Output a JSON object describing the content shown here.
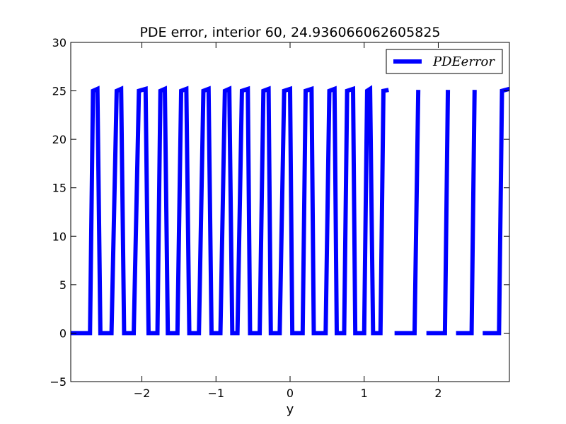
{
  "chart_data": {
    "type": "line",
    "title": "PDE error, interior 60, 24.936066062605825",
    "xlabel": "y",
    "ylabel": "",
    "xlim": [
      -2.96,
      2.96
    ],
    "ylim": [
      -5,
      30
    ],
    "xticks": [
      -2,
      -1,
      0,
      1,
      2
    ],
    "xtick_labels": [
      "−2",
      "−1",
      "0",
      "1",
      "2"
    ],
    "yticks": [
      -5,
      0,
      5,
      10,
      15,
      20,
      25,
      30
    ],
    "ytick_labels": [
      "−5",
      "0",
      "5",
      "10",
      "15",
      "20",
      "25",
      "30"
    ],
    "grid": false,
    "legend": {
      "position": "top-right",
      "entries": [
        "PDEerror"
      ]
    },
    "series": [
      {
        "name": "PDEerror",
        "color": "#0000ff",
        "segments": [
          [
            [
              -2.96,
              0.0
            ],
            [
              -2.7,
              0.0
            ],
            [
              -2.66,
              25.0
            ],
            [
              -2.6,
              25.2
            ],
            [
              -2.56,
              0.0
            ],
            [
              -2.41,
              0.0
            ],
            [
              -2.34,
              25.0
            ],
            [
              -2.28,
              25.2
            ],
            [
              -2.24,
              0.0
            ],
            [
              -2.11,
              0.0
            ],
            [
              -2.04,
              25.0
            ],
            [
              -1.95,
              25.2
            ],
            [
              -1.91,
              0.0
            ],
            [
              -1.79,
              0.0
            ],
            [
              -1.75,
              25.0
            ],
            [
              -1.69,
              25.2
            ],
            [
              -1.65,
              0.0
            ],
            [
              -1.52,
              0.0
            ],
            [
              -1.47,
              25.0
            ],
            [
              -1.4,
              25.2
            ],
            [
              -1.36,
              0.0
            ],
            [
              -1.23,
              0.0
            ],
            [
              -1.17,
              25.0
            ],
            [
              -1.1,
              25.2
            ],
            [
              -1.06,
              0.0
            ],
            [
              -0.94,
              0.0
            ],
            [
              -0.88,
              25.0
            ],
            [
              -0.82,
              25.2
            ],
            [
              -0.78,
              0.0
            ],
            [
              -0.71,
              0.0
            ],
            [
              -0.65,
              25.0
            ],
            [
              -0.57,
              25.2
            ],
            [
              -0.54,
              0.0
            ],
            [
              -0.41,
              0.0
            ],
            [
              -0.36,
              25.0
            ],
            [
              -0.29,
              25.2
            ],
            [
              -0.26,
              0.0
            ],
            [
              -0.14,
              0.0
            ],
            [
              -0.08,
              25.0
            ],
            [
              0.0,
              25.2
            ],
            [
              0.03,
              0.0
            ],
            [
              0.17,
              0.0
            ],
            [
              0.21,
              25.0
            ],
            [
              0.29,
              25.2
            ],
            [
              0.32,
              0.0
            ],
            [
              0.48,
              0.0
            ],
            [
              0.53,
              25.0
            ],
            [
              0.6,
              25.2
            ],
            [
              0.63,
              0.0
            ],
            [
              0.73,
              0.0
            ],
            [
              0.77,
              25.0
            ],
            [
              0.85,
              25.2
            ],
            [
              0.88,
              0.0
            ],
            [
              1.0,
              0.0
            ],
            [
              1.04,
              25.0
            ],
            [
              1.08,
              25.2
            ],
            [
              1.12,
              0.0
            ],
            [
              1.22,
              0.0
            ],
            [
              1.26,
              25.0
            ],
            [
              1.33,
              25.1
            ]
          ],
          [
            [
              1.41,
              0.0
            ],
            [
              1.68,
              0.0
            ],
            [
              1.73,
              25.1
            ]
          ],
          [
            [
              1.84,
              0.0
            ],
            [
              2.09,
              0.0
            ],
            [
              2.13,
              25.1
            ]
          ],
          [
            [
              2.24,
              0.0
            ],
            [
              2.45,
              0.0
            ],
            [
              2.49,
              25.1
            ]
          ],
          [
            [
              2.6,
              0.0
            ],
            [
              2.82,
              0.0
            ],
            [
              2.86,
              25.0
            ],
            [
              2.96,
              25.2
            ]
          ]
        ]
      }
    ]
  }
}
